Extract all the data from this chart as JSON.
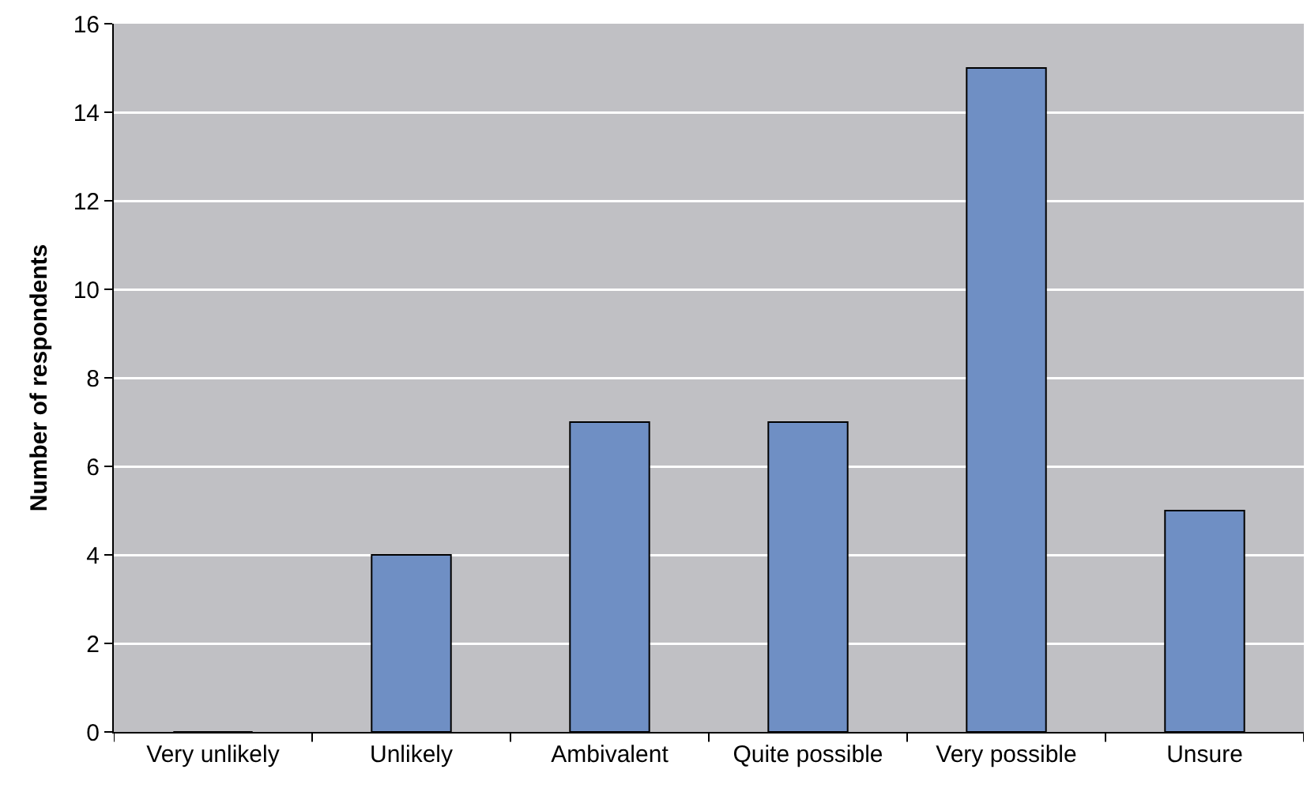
{
  "chart_data": {
    "type": "bar",
    "ylabel": "Number of respondents",
    "categories": [
      "Very unlikely",
      "Unlikely",
      "Ambivalent",
      "Quite possible",
      "Very possible",
      "Unsure"
    ],
    "values": [
      0,
      4,
      7,
      7,
      15,
      5
    ],
    "color": "#6f8fc4",
    "ylim": [
      0,
      16
    ],
    "yticks": [
      0,
      2,
      4,
      6,
      8,
      10,
      12,
      14,
      16
    ],
    "grid": "y"
  }
}
